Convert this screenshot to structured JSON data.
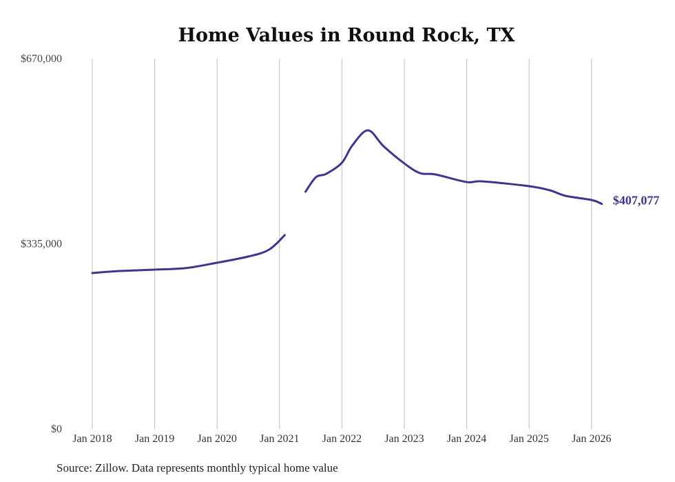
{
  "chart_data": {
    "type": "line",
    "title": "Home Values in Round Rock, TX",
    "xlabel": "",
    "ylabel": "",
    "ylim": [
      0,
      670000
    ],
    "xlim": [
      "2018-01",
      "2026-03"
    ],
    "yticks": [
      {
        "value": 0,
        "label": "$0"
      },
      {
        "value": 335000,
        "label": "$335,000"
      },
      {
        "value": 670000,
        "label": "$670,000"
      }
    ],
    "xticks": [
      {
        "date": "2018-01",
        "label": "Jan 2018"
      },
      {
        "date": "2019-01",
        "label": "Jan 2019"
      },
      {
        "date": "2020-01",
        "label": "Jan 2020"
      },
      {
        "date": "2021-01",
        "label": "Jan 2021"
      },
      {
        "date": "2022-01",
        "label": "Jan 2022"
      },
      {
        "date": "2023-01",
        "label": "Jan 2023"
      },
      {
        "date": "2024-01",
        "label": "Jan 2024"
      },
      {
        "date": "2025-01",
        "label": "Jan 2025"
      },
      {
        "date": "2026-01",
        "label": "Jan 2026"
      }
    ],
    "grid": "vertical",
    "series": [
      {
        "name": "Typical home value",
        "color": "#3d3590",
        "segments": [
          [
            {
              "date": "2018-01",
              "value": 282000
            },
            {
              "date": "2018-06",
              "value": 285500
            },
            {
              "date": "2019-01",
              "value": 288200
            },
            {
              "date": "2019-07",
              "value": 291000
            },
            {
              "date": "2020-01",
              "value": 300700
            },
            {
              "date": "2020-07",
              "value": 311900
            },
            {
              "date": "2020-11",
              "value": 324400
            },
            {
              "date": "2021-02",
              "value": 350600
            }
          ],
          [
            {
              "date": "2021-06",
              "value": 429200
            },
            {
              "date": "2021-08",
              "value": 455400
            },
            {
              "date": "2021-10",
              "value": 461600
            },
            {
              "date": "2022-01",
              "value": 481600
            },
            {
              "date": "2022-03",
              "value": 512800
            },
            {
              "date": "2022-06",
              "value": 540200
            },
            {
              "date": "2022-09",
              "value": 511600
            },
            {
              "date": "2023-01",
              "value": 480400
            },
            {
              "date": "2023-04",
              "value": 462900
            },
            {
              "date": "2023-07",
              "value": 460400
            },
            {
              "date": "2024-01",
              "value": 446700
            },
            {
              "date": "2024-04",
              "value": 447900
            },
            {
              "date": "2025-01",
              "value": 439200
            },
            {
              "date": "2025-05",
              "value": 431700
            },
            {
              "date": "2025-08",
              "value": 421700
            },
            {
              "date": "2026-01",
              "value": 414200
            },
            {
              "date": "2026-03",
              "value": 407077
            }
          ]
        ]
      }
    ],
    "annotations": [
      {
        "date": "2026-03",
        "value": 407077,
        "label": "$407,077"
      }
    ],
    "source": "Source: Zillow. Data represents monthly typical home value"
  }
}
